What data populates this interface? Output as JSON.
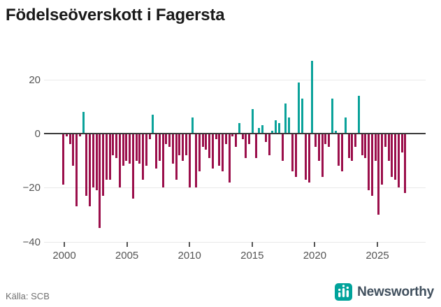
{
  "title": "Födelseöverskott i Fagersta",
  "source": "Källa: SCB",
  "brand": {
    "name": "Newsworthy",
    "icon": "newsworthy-bar-chart-logo"
  },
  "colors": {
    "positive": "#0aa29a",
    "negative": "#9b0f4b",
    "axis": "#3b3b3b",
    "grid": "#e9e9e9",
    "tick_text": "#555555",
    "brand_teal": "#00a39b",
    "brand_text": "#41505e"
  },
  "chart_data": {
    "type": "bar",
    "title": "Födelseöverskott i Fagersta",
    "frequency": "quarterly",
    "start_year": 2000,
    "end_year": 2025,
    "x_ticks": [
      "2000",
      "2005",
      "2010",
      "2015",
      "2020",
      "2025"
    ],
    "y_ticks": [
      20,
      0,
      -20,
      -40
    ],
    "ylim": [
      -40,
      28
    ],
    "grid": "horizontal",
    "legend": "none",
    "values": [
      -19,
      -1,
      -4,
      -12,
      -27,
      -1,
      8,
      -23,
      -27,
      -20,
      -21,
      -35,
      -23,
      -17,
      -17,
      -8,
      -9,
      -20,
      -12,
      -10,
      -11,
      -24,
      -10,
      -11,
      -17,
      -12,
      -2,
      7,
      -13,
      -10,
      -20,
      -4,
      -5,
      -11,
      -17,
      -8,
      -10,
      -8,
      -20,
      6,
      -20,
      -14,
      -5,
      -6,
      -9,
      -13,
      -2,
      -12,
      -14,
      -4,
      -18,
      -1,
      -5,
      4,
      -2,
      -9,
      -4,
      9,
      -9,
      2,
      3,
      -3,
      -8,
      1,
      5,
      4,
      -10,
      11,
      6,
      -14,
      -16,
      19,
      13,
      -17,
      -18,
      27,
      -5,
      -10,
      -16,
      -4,
      -5,
      13,
      1,
      -12,
      -14,
      6,
      -9,
      -10,
      -5,
      14,
      -8,
      -9,
      -21,
      -23,
      -10,
      -30,
      -19,
      -5,
      -10,
      -16,
      -17,
      -20,
      -7,
      -22
    ]
  }
}
